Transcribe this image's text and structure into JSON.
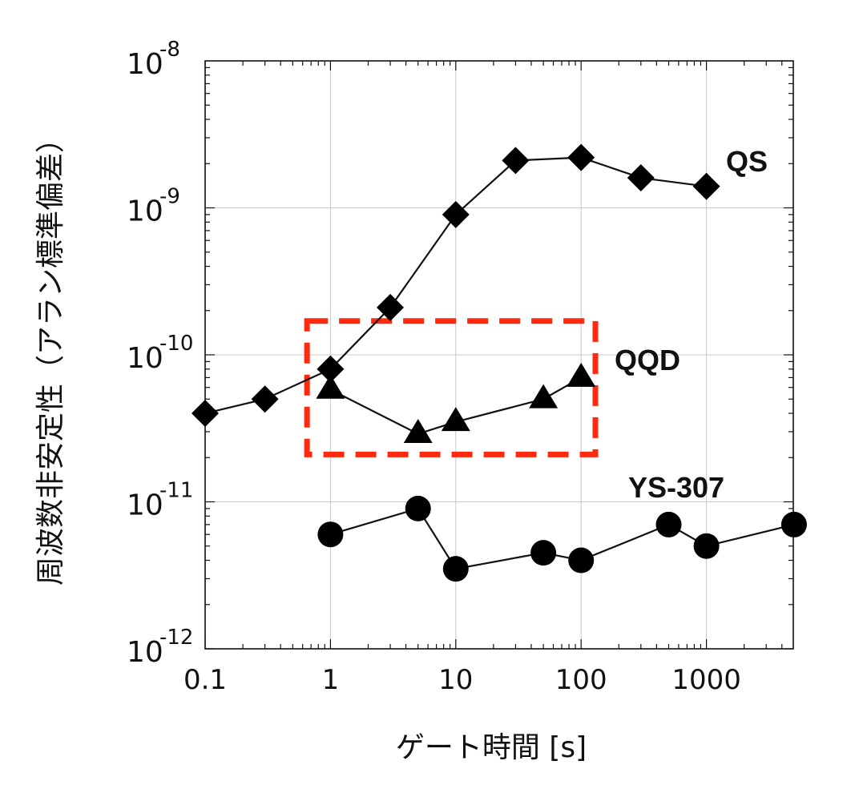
{
  "chart_data": {
    "type": "line",
    "title": "",
    "xlabel": "ゲート時間 [s]",
    "ylabel": "周波数非安定性（アラン標準偏差）",
    "xscale": "log",
    "yscale": "log",
    "xlim": [
      0.1,
      5000
    ],
    "ylim": [
      1e-12,
      1e-08
    ],
    "grid": true,
    "x_tick_labels": [
      "0.1",
      "1",
      "10",
      "100",
      "1000"
    ],
    "x_ticks": [
      0.1,
      1,
      10,
      100,
      1000
    ],
    "y_ticks": [
      {
        "value": 1e-08,
        "base": "10",
        "exp": "-8"
      },
      {
        "value": 1e-09,
        "base": "10",
        "exp": "-9"
      },
      {
        "value": 1e-10,
        "base": "10",
        "exp": "-10"
      },
      {
        "value": 1e-11,
        "base": "10",
        "exp": "-11"
      },
      {
        "value": 1e-12,
        "base": "10",
        "exp": "-12"
      }
    ],
    "series": [
      {
        "name": "QS",
        "marker": "diamond",
        "x": [
          0.1,
          0.3,
          1,
          3,
          10,
          30,
          100,
          300,
          1000
        ],
        "values": [
          4e-11,
          5e-11,
          8e-11,
          2.1e-10,
          9e-10,
          2.1e-09,
          2.2e-09,
          1.6e-09,
          1.4e-09
        ]
      },
      {
        "name": "QQD",
        "marker": "triangle",
        "x": [
          1,
          5,
          10,
          50,
          100
        ],
        "values": [
          5.8e-11,
          2.9e-11,
          3.5e-11,
          5e-11,
          7e-11
        ]
      },
      {
        "name": "YS-307",
        "marker": "circle",
        "x": [
          1,
          5,
          10,
          50,
          100,
          500,
          1000,
          5000
        ],
        "values": [
          6e-12,
          9e-12,
          3.5e-12,
          4.5e-12,
          4e-12,
          7e-12,
          5e-12,
          7e-12
        ]
      }
    ],
    "annotations": [
      {
        "type": "dashed-rectangle",
        "color": "#ff2a10",
        "x_range": [
          0.65,
          130
        ],
        "y_range": [
          2.1e-11,
          1.7e-10
        ]
      }
    ]
  }
}
